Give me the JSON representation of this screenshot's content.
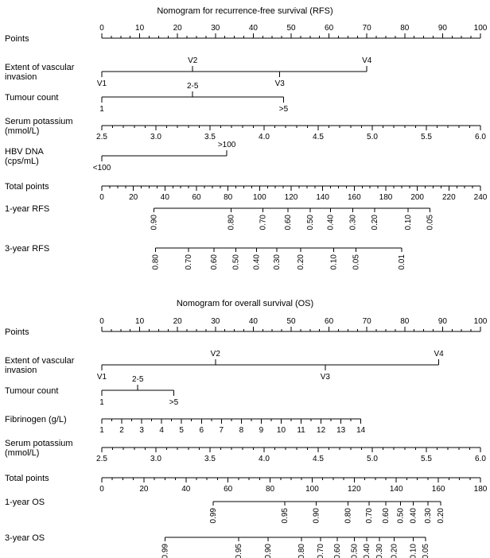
{
  "colors": {
    "background": "#ffffff",
    "ink": "#000000"
  },
  "chart_data": [
    {
      "type": "nomogram",
      "title": "Nomogram for recurrence-free survival (RFS)",
      "rows": [
        {
          "name": "points",
          "label_lines": [
            "Points"
          ],
          "kind": "scale",
          "domain": [
            0,
            100
          ],
          "span": [
            0,
            100
          ],
          "side": "above",
          "minor_step": 2.5,
          "majors": [
            {
              "v": 0,
              "t": "0"
            },
            {
              "v": 10,
              "t": "10"
            },
            {
              "v": 20,
              "t": "20"
            },
            {
              "v": 30,
              "t": "30"
            },
            {
              "v": 40,
              "t": "40"
            },
            {
              "v": 50,
              "t": "50"
            },
            {
              "v": 60,
              "t": "60"
            },
            {
              "v": 70,
              "t": "70"
            },
            {
              "v": 80,
              "t": "80"
            },
            {
              "v": 90,
              "t": "90"
            },
            {
              "v": 100,
              "t": "100"
            }
          ]
        },
        {
          "name": "extent-of-vascular-invasion",
          "label_lines": [
            "Extent of vascular",
            "invasion"
          ],
          "kind": "cats",
          "domain": [
            0,
            100
          ],
          "span": [
            0,
            70
          ],
          "cats": [
            {
              "v": 0,
              "t": "V1",
              "side": "below"
            },
            {
              "v": 24,
              "t": "V2",
              "side": "above"
            },
            {
              "v": 47,
              "t": "V3",
              "side": "below"
            },
            {
              "v": 70,
              "t": "V4",
              "side": "above"
            }
          ]
        },
        {
          "name": "tumour-count",
          "label_lines": [
            "Tumour count"
          ],
          "kind": "cats",
          "domain": [
            0,
            100
          ],
          "span": [
            0,
            48
          ],
          "cats": [
            {
              "v": 0,
              "t": "1",
              "side": "below"
            },
            {
              "v": 24,
              "t": "2-5",
              "side": "above"
            },
            {
              "v": 48,
              "t": ">5",
              "side": "below"
            }
          ]
        },
        {
          "name": "serum-potassium",
          "label_lines": [
            "Serum potassium",
            "(mmol/L)"
          ],
          "kind": "scale",
          "domain": [
            2.5,
            6
          ],
          "span": [
            2.5,
            6
          ],
          "side": "below",
          "minor_step": 0.1,
          "majors": [
            {
              "v": 2.5,
              "t": "2.5"
            },
            {
              "v": 3,
              "t": "3.0"
            },
            {
              "v": 3.5,
              "t": "3.5"
            },
            {
              "v": 4,
              "t": "4.0"
            },
            {
              "v": 4.5,
              "t": "4.5"
            },
            {
              "v": 5,
              "t": "5.0"
            },
            {
              "v": 5.5,
              "t": "5.5"
            },
            {
              "v": 6,
              "t": "6.0"
            }
          ]
        },
        {
          "name": "hbv-dna",
          "label_lines": [
            "HBV DNA",
            "(cps/mL)"
          ],
          "kind": "cats",
          "domain": [
            0,
            100
          ],
          "span": [
            0,
            33
          ],
          "cats": [
            {
              "v": 0,
              "t": "<100",
              "side": "below"
            },
            {
              "v": 33,
              "t": ">100",
              "side": "above"
            }
          ]
        },
        {
          "name": "total-points",
          "label_lines": [
            "Total points"
          ],
          "kind": "scale",
          "domain": [
            0,
            240
          ],
          "span": [
            0,
            240
          ],
          "side": "below",
          "minor_step": 5,
          "majors": [
            {
              "v": 0,
              "t": "0"
            },
            {
              "v": 20,
              "t": "20"
            },
            {
              "v": 40,
              "t": "40"
            },
            {
              "v": 60,
              "t": "60"
            },
            {
              "v": 80,
              "t": "80"
            },
            {
              "v": 100,
              "t": "100"
            },
            {
              "v": 120,
              "t": "120"
            },
            {
              "v": 140,
              "t": "140"
            },
            {
              "v": 160,
              "t": "160"
            },
            {
              "v": 180,
              "t": "180"
            },
            {
              "v": 200,
              "t": "200"
            },
            {
              "v": 220,
              "t": "220"
            },
            {
              "v": 240,
              "t": "240"
            }
          ]
        },
        {
          "name": "one-year-rfs",
          "label_lines": [
            "1-year RFS"
          ],
          "kind": "probs",
          "domain": [
            0,
            240
          ],
          "probs": [
            {
              "v": 33,
              "t": "0.90"
            },
            {
              "v": 82,
              "t": "0.80"
            },
            {
              "v": 102,
              "t": "0.70"
            },
            {
              "v": 118,
              "t": "0.60"
            },
            {
              "v": 132,
              "t": "0.50"
            },
            {
              "v": 145,
              "t": "0.40"
            },
            {
              "v": 159,
              "t": "0.30"
            },
            {
              "v": 173,
              "t": "0.20"
            },
            {
              "v": 194,
              "t": "0.10"
            },
            {
              "v": 208,
              "t": "0.05"
            }
          ]
        },
        {
          "name": "three-year-rfs",
          "label_lines": [
            "3-year RFS"
          ],
          "kind": "probs",
          "domain": [
            0,
            240
          ],
          "probs": [
            {
              "v": 34,
              "t": "0.80"
            },
            {
              "v": 55,
              "t": "0.70"
            },
            {
              "v": 71,
              "t": "0.60"
            },
            {
              "v": 85,
              "t": "0.50"
            },
            {
              "v": 98,
              "t": "0.40"
            },
            {
              "v": 111,
              "t": "0.30"
            },
            {
              "v": 126,
              "t": "0.20"
            },
            {
              "v": 147,
              "t": "0.10"
            },
            {
              "v": 161,
              "t": "0.05"
            },
            {
              "v": 190,
              "t": "0.01"
            }
          ]
        }
      ]
    },
    {
      "type": "nomogram",
      "title": "Nomogram for overall survival (OS)",
      "rows": [
        {
          "name": "points",
          "label_lines": [
            "Points"
          ],
          "kind": "scale",
          "domain": [
            0,
            100
          ],
          "span": [
            0,
            100
          ],
          "side": "above",
          "minor_step": 2.5,
          "majors": [
            {
              "v": 0,
              "t": "0"
            },
            {
              "v": 10,
              "t": "10"
            },
            {
              "v": 20,
              "t": "20"
            },
            {
              "v": 30,
              "t": "30"
            },
            {
              "v": 40,
              "t": "40"
            },
            {
              "v": 50,
              "t": "50"
            },
            {
              "v": 60,
              "t": "60"
            },
            {
              "v": 70,
              "t": "70"
            },
            {
              "v": 80,
              "t": "80"
            },
            {
              "v": 90,
              "t": "90"
            },
            {
              "v": 100,
              "t": "100"
            }
          ]
        },
        {
          "name": "extent-of-vascular-invasion",
          "label_lines": [
            "Extent of vascular",
            "invasion"
          ],
          "kind": "cats",
          "domain": [
            0,
            100
          ],
          "span": [
            0,
            89
          ],
          "cats": [
            {
              "v": 0,
              "t": "V1",
              "side": "below"
            },
            {
              "v": 30,
              "t": "V2",
              "side": "above"
            },
            {
              "v": 59,
              "t": "V3",
              "side": "below"
            },
            {
              "v": 89,
              "t": "V4",
              "side": "above"
            }
          ]
        },
        {
          "name": "tumour-count",
          "label_lines": [
            "Tumour count"
          ],
          "kind": "cats",
          "domain": [
            0,
            100
          ],
          "span": [
            0,
            19
          ],
          "cats": [
            {
              "v": 0,
              "t": "1",
              "side": "below"
            },
            {
              "v": 9.5,
              "t": "2-5",
              "side": "above"
            },
            {
              "v": 19,
              "t": ">5",
              "side": "below"
            }
          ]
        },
        {
          "name": "fibrinogen",
          "label_lines": [
            "Fibrinogen (g/L)"
          ],
          "kind": "scale",
          "domain": [
            1,
            20
          ],
          "span": [
            1,
            14
          ],
          "side": "below",
          "minor_step": 0.5,
          "majors": [
            {
              "v": 1,
              "t": "1"
            },
            {
              "v": 2,
              "t": "2"
            },
            {
              "v": 3,
              "t": "3"
            },
            {
              "v": 4,
              "t": "4"
            },
            {
              "v": 5,
              "t": "5"
            },
            {
              "v": 6,
              "t": "6"
            },
            {
              "v": 7,
              "t": "7"
            },
            {
              "v": 8,
              "t": "8"
            },
            {
              "v": 9,
              "t": "9"
            },
            {
              "v": 10,
              "t": "10"
            },
            {
              "v": 11,
              "t": "11"
            },
            {
              "v": 12,
              "t": "12"
            },
            {
              "v": 13,
              "t": "13"
            },
            {
              "v": 14,
              "t": "14"
            }
          ]
        },
        {
          "name": "serum-potassium",
          "label_lines": [
            "Serum potassium",
            "(mmol/L)"
          ],
          "kind": "scale",
          "domain": [
            2.5,
            6
          ],
          "span": [
            2.5,
            6
          ],
          "side": "below",
          "minor_step": 0.1,
          "majors": [
            {
              "v": 2.5,
              "t": "2.5"
            },
            {
              "v": 3,
              "t": "3.0"
            },
            {
              "v": 3.5,
              "t": "3.5"
            },
            {
              "v": 4,
              "t": "4.0"
            },
            {
              "v": 4.5,
              "t": "4.5"
            },
            {
              "v": 5,
              "t": "5.0"
            },
            {
              "v": 5.5,
              "t": "5.5"
            },
            {
              "v": 6,
              "t": "6.0"
            }
          ]
        },
        {
          "name": "total-points",
          "label_lines": [
            "Total points"
          ],
          "kind": "scale",
          "domain": [
            0,
            180
          ],
          "span": [
            0,
            180
          ],
          "side": "below",
          "minor_step": 5,
          "majors": [
            {
              "v": 0,
              "t": "0"
            },
            {
              "v": 20,
              "t": "20"
            },
            {
              "v": 40,
              "t": "40"
            },
            {
              "v": 60,
              "t": "60"
            },
            {
              "v": 80,
              "t": "80"
            },
            {
              "v": 100,
              "t": "100"
            },
            {
              "v": 120,
              "t": "120"
            },
            {
              "v": 140,
              "t": "140"
            },
            {
              "v": 160,
              "t": "160"
            },
            {
              "v": 180,
              "t": "180"
            }
          ]
        },
        {
          "name": "one-year-os",
          "label_lines": [
            "1-year OS"
          ],
          "kind": "probs",
          "domain": [
            0,
            180
          ],
          "probs": [
            {
              "v": 53,
              "t": "0.99"
            },
            {
              "v": 87,
              "t": "0.95"
            },
            {
              "v": 102,
              "t": "0.90"
            },
            {
              "v": 117,
              "t": "0.80"
            },
            {
              "v": 127,
              "t": "0.70"
            },
            {
              "v": 135,
              "t": "0.60"
            },
            {
              "v": 142,
              "t": "0.50"
            },
            {
              "v": 148,
              "t": "0.40"
            },
            {
              "v": 155,
              "t": "0.30"
            },
            {
              "v": 161,
              "t": "0.20"
            }
          ]
        },
        {
          "name": "three-year-os",
          "label_lines": [
            "3-year OS"
          ],
          "kind": "probs",
          "domain": [
            0,
            180
          ],
          "probs": [
            {
              "v": 30,
              "t": "0.99"
            },
            {
              "v": 65,
              "t": "0.95"
            },
            {
              "v": 79,
              "t": "0.90"
            },
            {
              "v": 95,
              "t": "0.80"
            },
            {
              "v": 104,
              "t": "0.70"
            },
            {
              "v": 112,
              "t": "0.60"
            },
            {
              "v": 120,
              "t": "0.50"
            },
            {
              "v": 126,
              "t": "0.40"
            },
            {
              "v": 132,
              "t": "0.30"
            },
            {
              "v": 139,
              "t": "0.20"
            },
            {
              "v": 148,
              "t": "0.10"
            },
            {
              "v": 154,
              "t": "0.05"
            }
          ]
        }
      ]
    }
  ]
}
